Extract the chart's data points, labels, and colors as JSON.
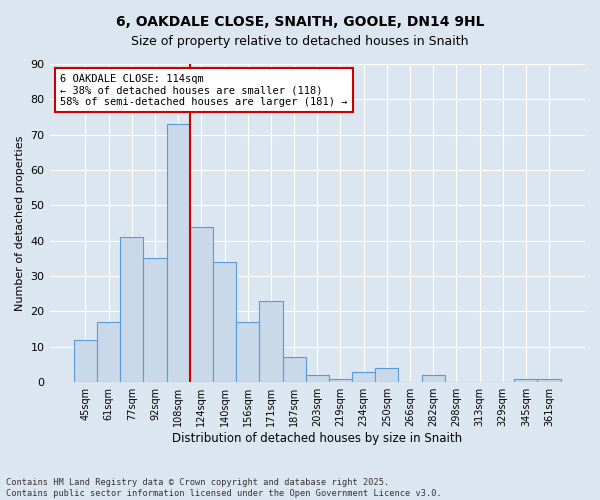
{
  "title": "6, OAKDALE CLOSE, SNAITH, GOOLE, DN14 9HL",
  "subtitle": "Size of property relative to detached houses in Snaith",
  "xlabel": "Distribution of detached houses by size in Snaith",
  "ylabel": "Number of detached properties",
  "categories": [
    "45sqm",
    "61sqm",
    "77sqm",
    "92sqm",
    "108sqm",
    "124sqm",
    "140sqm",
    "156sqm",
    "171sqm",
    "187sqm",
    "203sqm",
    "219sqm",
    "234sqm",
    "250sqm",
    "266sqm",
    "282sqm",
    "298sqm",
    "313sqm",
    "329sqm",
    "345sqm",
    "361sqm"
  ],
  "values": [
    12,
    17,
    41,
    35,
    73,
    44,
    34,
    17,
    23,
    7,
    2,
    1,
    3,
    4,
    0,
    2,
    0,
    0,
    0,
    1,
    1
  ],
  "bar_color": "#c9d9ea",
  "bar_edge_color": "#5b9bd5",
  "grid_color": "#ffffff",
  "bg_color": "#dce6f1",
  "red_line_color": "#cc0000",
  "property_line_index": 4,
  "annotation_text": "6 OAKDALE CLOSE: 114sqm\n← 38% of detached houses are smaller (118)\n58% of semi-detached houses are larger (181) →",
  "annotation_box_color": "#ffffff",
  "annotation_box_edge": "#cc0000",
  "footer": "Contains HM Land Registry data © Crown copyright and database right 2025.\nContains public sector information licensed under the Open Government Licence v3.0.",
  "ylim": [
    0,
    90
  ],
  "yticks": [
    0,
    10,
    20,
    30,
    40,
    50,
    60,
    70,
    80,
    90
  ],
  "title_fontsize": 10,
  "subtitle_fontsize": 9
}
